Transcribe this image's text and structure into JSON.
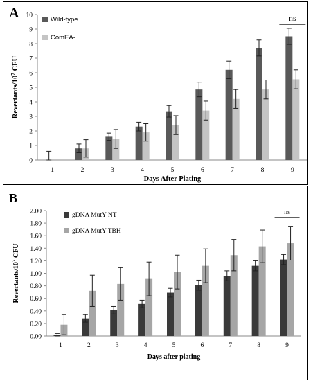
{
  "chart_data": [
    {
      "panel_label": "A",
      "type": "bar",
      "categories": [
        "1",
        "2",
        "3",
        "4",
        "5",
        "6",
        "7",
        "8",
        "9"
      ],
      "series": [
        {
          "name": "Wild-type",
          "color": "#595959",
          "values": [
            0.0,
            0.8,
            1.6,
            2.3,
            3.35,
            4.85,
            6.2,
            7.7,
            8.5
          ],
          "errors": [
            0.6,
            0.3,
            0.25,
            0.3,
            0.4,
            0.5,
            0.6,
            0.55,
            0.55
          ]
        },
        {
          "name": "ComEA-",
          "color": "#c4c4c4",
          "values": [
            0.0,
            0.8,
            1.45,
            1.9,
            2.4,
            3.4,
            4.2,
            4.85,
            5.55
          ],
          "errors": [
            0.0,
            0.6,
            0.65,
            0.6,
            0.65,
            0.65,
            0.65,
            0.65,
            0.65
          ]
        }
      ],
      "xlabel": "Days After Plating",
      "ylabel": "Revertants/10",
      "ylabel_sup": "7",
      "ylabel_tail": " CFU",
      "ylim": [
        0,
        10
      ],
      "yticks": [
        "0",
        "1",
        "2",
        "3",
        "4",
        "5",
        "6",
        "7",
        "8",
        "9",
        "10"
      ],
      "annotation": "ns",
      "grid": false,
      "legend_position": "top-left"
    },
    {
      "panel_label": "B",
      "type": "bar",
      "categories": [
        "1",
        "2",
        "3",
        "4",
        "5",
        "6",
        "7",
        "8",
        "9"
      ],
      "series": [
        {
          "name": "gDNA MutY NT",
          "color": "#3a3a3a",
          "values": [
            0.02,
            0.28,
            0.41,
            0.51,
            0.69,
            0.81,
            0.96,
            1.12,
            1.22
          ],
          "errors": [
            0.02,
            0.06,
            0.06,
            0.06,
            0.07,
            0.08,
            0.08,
            0.08,
            0.08
          ]
        },
        {
          "name": "gDNA MutY TBH",
          "color": "#a6a6a6",
          "values": [
            0.18,
            0.72,
            0.83,
            0.91,
            1.02,
            1.12,
            1.29,
            1.43,
            1.48
          ],
          "errors": [
            0.16,
            0.25,
            0.26,
            0.27,
            0.27,
            0.27,
            0.25,
            0.26,
            0.27
          ]
        }
      ],
      "xlabel": "Days after plating",
      "ylabel": "Revertants/10",
      "ylabel_sup": "7",
      "ylabel_tail": " CFU",
      "ylim": [
        0,
        2.0
      ],
      "yticks": [
        "0.00",
        "0.20",
        "0.40",
        "0.60",
        "0.80",
        "1.00",
        "1.20",
        "1.40",
        "1.60",
        "1.80",
        "2.00"
      ],
      "annotation": "ns",
      "grid": false,
      "legend_position": "top-left"
    }
  ]
}
